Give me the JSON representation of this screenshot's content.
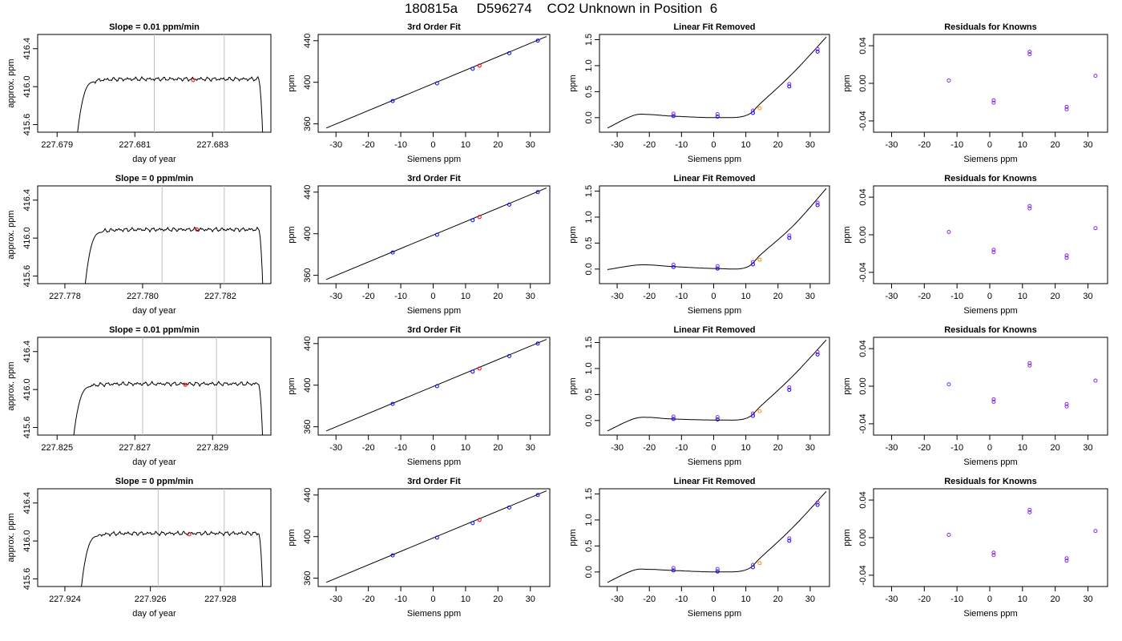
{
  "page": {
    "title": "180815a     D596274    CO2 Unknown in Position  6"
  },
  "colors": {
    "known_point": "#0000ff",
    "unknown_point_fit": "#ff0000",
    "unknown_point_removed": "#ff8c00",
    "residual_point": "#8a2be2",
    "curve": "#000000",
    "window_line": "#bfbfbf"
  },
  "rows": [
    {
      "strip": {
        "title": "Slope =  0.01  ppm/min",
        "xlabel": "day of year",
        "ylabel": "approx. ppm",
        "xlim": [
          227.6785,
          227.6845
        ],
        "ylim": [
          415.52,
          416.55
        ],
        "xticks": [
          227.679,
          227.681,
          227.683
        ],
        "xtick_labels": [
          "227.679",
          "227.681",
          "227.683"
        ],
        "yticks": [
          415.6,
          416.0,
          416.4
        ],
        "ytick_labels": [
          "415.6",
          "416.0",
          "416.4"
        ],
        "trace_start": 227.6795,
        "trace_end": 227.6843,
        "plateau": 416.08,
        "window": [
          227.6815,
          227.6833
        ],
        "unknown_point": [
          227.6825,
          416.07
        ]
      },
      "fit_point_y": [
        382,
        399,
        413,
        416,
        428,
        440
      ],
      "removed_point_y": [
        0.03,
        0.02,
        0.09,
        0.18,
        0.6,
        1.27
      ],
      "removed_curve": [
        -0.2,
        0.04,
        0.06,
        0.03,
        0.0,
        0.04,
        0.3,
        0.88,
        1.55
      ],
      "residual_point_y": [
        0.003,
        -0.018,
        0.031,
        -0.025,
        0.008
      ]
    },
    {
      "strip": {
        "title": "Slope =  0  ppm/min",
        "xlabel": "day of year",
        "ylabel": "approx. ppm",
        "xlim": [
          227.7773,
          227.7833
        ],
        "ylim": [
          415.52,
          416.55
        ],
        "xticks": [
          227.778,
          227.78,
          227.782
        ],
        "xtick_labels": [
          "227.778",
          "227.780",
          "227.782"
        ],
        "yticks": [
          415.6,
          416.0,
          416.4
        ],
        "ytick_labels": [
          "415.6",
          "416.0",
          "416.4"
        ],
        "trace_start": 227.7785,
        "trace_end": 227.7831,
        "plateau": 416.09,
        "window": [
          227.7805,
          227.7821
        ],
        "unknown_point": [
          227.7814,
          416.09
        ]
      },
      "fit_point_y": [
        382,
        399,
        413,
        416,
        428,
        440
      ],
      "removed_point_y": [
        0.04,
        0.01,
        0.09,
        0.18,
        0.6,
        1.23
      ],
      "removed_curve": [
        -0.01,
        0.07,
        0.08,
        0.05,
        0.01,
        0.03,
        0.3,
        0.85,
        1.55
      ],
      "residual_point_y": [
        0.003,
        -0.016,
        0.028,
        -0.022,
        0.007
      ]
    },
    {
      "strip": {
        "title": "Slope =  0.01  ppm/min",
        "xlabel": "day of year",
        "ylabel": "approx. ppm",
        "xlim": [
          227.8245,
          227.8305
        ],
        "ylim": [
          415.52,
          416.55
        ],
        "xticks": [
          227.825,
          227.827,
          227.829
        ],
        "xtick_labels": [
          "227.825",
          "227.827",
          "227.829"
        ],
        "yticks": [
          415.6,
          416.0,
          416.4
        ],
        "ytick_labels": [
          "415.6",
          "416.0",
          "416.4"
        ],
        "trace_start": 227.8254,
        "trace_end": 227.8303,
        "plateau": 416.06,
        "window": [
          227.8272,
          227.8291
        ],
        "unknown_point": [
          227.8283,
          416.05
        ]
      },
      "fit_point_y": [
        382,
        399,
        413,
        416,
        428,
        440
      ],
      "removed_point_y": [
        0.03,
        0.02,
        0.09,
        0.18,
        0.59,
        1.27
      ],
      "removed_curve": [
        -0.2,
        0.03,
        0.06,
        0.03,
        0.01,
        0.04,
        0.3,
        0.88,
        1.55
      ],
      "residual_point_y": [
        0.002,
        -0.014,
        0.022,
        -0.019,
        0.006
      ]
    },
    {
      "strip": {
        "title": "Slope =  0  ppm/min",
        "xlabel": "day of year",
        "ylabel": "approx. ppm",
        "xlim": [
          227.9233,
          227.9293
        ],
        "ylim": [
          415.52,
          416.55
        ],
        "xticks": [
          227.924,
          227.9262,
          227.928
        ],
        "xtick_labels": [
          "227.924",
          "227.926",
          "227.928"
        ],
        "yticks": [
          415.6,
          416.0,
          416.4
        ],
        "ytick_labels": [
          "415.6",
          "416.0",
          "416.4"
        ],
        "trace_start": 227.9244,
        "trace_end": 227.9291,
        "plateau": 416.08,
        "window": [
          227.9264,
          227.9281
        ],
        "unknown_point": [
          227.9272,
          416.07
        ]
      },
      "fit_point_y": [
        382,
        399,
        413,
        416,
        428,
        440
      ],
      "removed_point_y": [
        0.03,
        0.01,
        0.09,
        0.17,
        0.6,
        1.29
      ],
      "removed_curve": [
        -0.2,
        0.03,
        0.05,
        0.03,
        0.0,
        0.04,
        0.3,
        0.88,
        1.55
      ],
      "residual_point_y": [
        0.003,
        -0.016,
        0.027,
        -0.022,
        0.007
      ]
    }
  ],
  "chart_data": {
    "type": "scatter",
    "shared": {
      "known_x": [
        -12.5,
        1.2,
        12.2,
        23.5,
        32.3
      ],
      "unknown_x": 14.3,
      "fit_point_x": [
        -12.5,
        1.2,
        12.2,
        14.3,
        23.5,
        32.3
      ],
      "fit_line_endpoints": {
        "x": [
          -33,
          35
        ],
        "y": [
          356,
          444
        ]
      },
      "removed_curve_x": [
        -33,
        -25,
        -20,
        -13,
        1,
        10,
        15,
        25,
        35
      ],
      "siemens": {
        "title_fit": "3rd Order Fit",
        "title_removed": "Linear Fit Removed",
        "title_residuals": "Residuals for Knowns",
        "xlabel": "Siemens ppm",
        "ylabel": "ppm",
        "xlim": [
          -35.5,
          36
        ],
        "xticks": [
          -30,
          -20,
          -10,
          0,
          10,
          20,
          30
        ],
        "xtick_labels": [
          "-30",
          "-20",
          "-10",
          "0",
          "10",
          "20",
          "30"
        ],
        "fit_ylim": [
          352,
          446
        ],
        "fit_yticks": [
          360,
          400,
          440
        ],
        "fit_ytick_labels": [
          "360",
          "400",
          "440"
        ],
        "removed_ylim": [
          -0.28,
          1.6
        ],
        "removed_yticks": [
          0.0,
          0.5,
          1.0,
          1.5
        ],
        "removed_ytick_labels": [
          "0.0",
          "0.5",
          "1.0",
          "1.5"
        ],
        "resid_ylim": [
          -0.052,
          0.052
        ],
        "resid_yticks": [
          -0.04,
          0.0,
          0.04
        ],
        "resid_ytick_labels": [
          "-0.04",
          "0.00",
          "0.04"
        ]
      }
    }
  }
}
